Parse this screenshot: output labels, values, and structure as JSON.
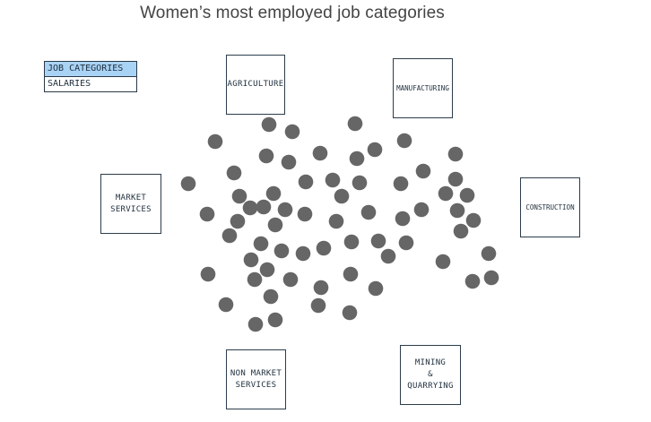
{
  "title": "Women’s most employed job categories",
  "toggle": {
    "items": [
      {
        "label": "JOB CATEGORIES",
        "active": true
      },
      {
        "label": "SALARIES",
        "active": false
      }
    ],
    "active_color": "#a9d3f5"
  },
  "categories": [
    {
      "id": "agriculture",
      "label": "AGRICULTURE"
    },
    {
      "id": "manufacturing",
      "label": "MANUFACTURING"
    },
    {
      "id": "market-services",
      "label": "MARKET\nSERVICES"
    },
    {
      "id": "construction",
      "label": "CONSTRUCTION"
    },
    {
      "id": "non-market-services",
      "label": "NON MARKET\nSERVICES"
    },
    {
      "id": "mining-quarrying",
      "label": "MINING\n&\nQUARRYING"
    }
  ],
  "bubble_color": "#666666"
}
